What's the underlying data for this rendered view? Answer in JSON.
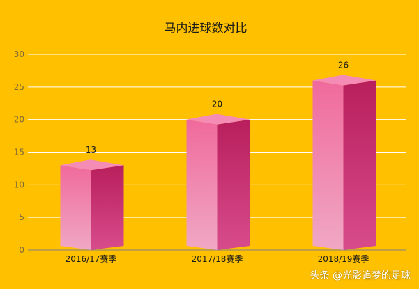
{
  "chart_data": {
    "type": "bar",
    "title": "马内进球数对比",
    "categories": [
      "2016/17赛季",
      "2017/18赛季",
      "2018/19赛季"
    ],
    "values": [
      13,
      20,
      26
    ],
    "ylim": [
      0,
      30
    ],
    "yticks": [
      0,
      5,
      10,
      15,
      20,
      25,
      30
    ],
    "grid": true,
    "legend": "none"
  },
  "colors": {
    "background": "#FFC000",
    "bar_front_top": "#F06A9C",
    "bar_front_bottom": "#F0A8C4",
    "bar_side_top": "#B81E5C",
    "bar_side_bottom": "#D84C8C",
    "bar_top": "#F58CB6",
    "grid": "#FFFFFF",
    "axis": "#808080",
    "tick_label": "#7F6A3A",
    "text": "#1A1A1A"
  },
  "watermark": "头条 @光影追梦的足球"
}
